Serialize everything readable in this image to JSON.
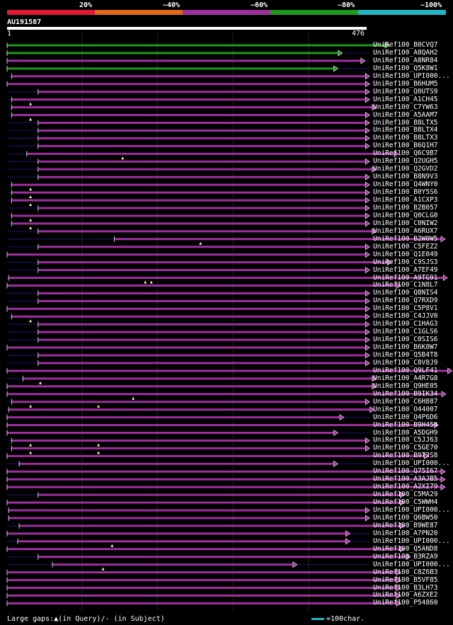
{
  "colors": {
    "bins": [
      "#e41a32",
      "#e06c1a",
      "#9d309d",
      "#1f9a1f",
      "#22b6c4"
    ],
    "red": "#e41a32",
    "orange": "#e06c1a",
    "purple": "#9d309d",
    "green": "#1f9a1f",
    "cyan": "#22b6c4"
  },
  "legend": {
    "p20": "20%",
    "p40": "~40%",
    "p60": "~60%",
    "p80": "~80%",
    "p100": "~100%"
  },
  "query": {
    "name": "AU191587",
    "start": "1",
    "end": "476",
    "length": 476
  },
  "footer": {
    "gaps": "Large gaps:▲(in Query)/- (in Subject)",
    "scale": "=100char."
  },
  "hits": [
    {
      "name": "UniRef100_B0CVQ7",
      "s": 1,
      "e": 507,
      "c": "green",
      "m": []
    },
    {
      "name": "UniRef100_A8QAH2",
      "s": 1,
      "e": 445,
      "c": "green",
      "m": []
    },
    {
      "name": "UniRef100_A8NR84",
      "s": 1,
      "e": 475,
      "c": "purple",
      "m": []
    },
    {
      "name": "UniRef100_Q5K8W1",
      "s": 1,
      "e": 439,
      "c": "green",
      "m": []
    },
    {
      "name": "UniRef100_UPI000...",
      "s": 7,
      "e": 481,
      "c": "purple",
      "m": []
    },
    {
      "name": "UniRef100_B6HUM5",
      "s": 1,
      "e": 481,
      "c": "purple",
      "m": []
    },
    {
      "name": "UniRef100_Q0UTS9",
      "s": 42,
      "e": 481,
      "c": "purple",
      "m": []
    },
    {
      "name": "UniRef100_A1CH45",
      "s": 7,
      "e": 481,
      "c": "purple",
      "m": [
        32
      ]
    },
    {
      "name": "UniRef100_C7YW63",
      "s": 7,
      "e": 490,
      "c": "purple",
      "m": []
    },
    {
      "name": "UniRef100_A5AAM7",
      "s": 7,
      "e": 481,
      "c": "purple",
      "m": [
        32
      ]
    },
    {
      "name": "UniRef100_B8LTX5",
      "s": 42,
      "e": 481,
      "c": "purple",
      "m": []
    },
    {
      "name": "UniRef100_B8LTX4",
      "s": 42,
      "e": 481,
      "c": "purple",
      "m": []
    },
    {
      "name": "UniRef100_B8LTX3",
      "s": 42,
      "e": 481,
      "c": "purple",
      "m": []
    },
    {
      "name": "UniRef100_B6Q1H7",
      "s": 42,
      "e": 481,
      "c": "purple",
      "m": []
    },
    {
      "name": "UniRef100_Q6C9B7",
      "s": 27,
      "e": 519,
      "c": "purple",
      "m": [
        154
      ]
    },
    {
      "name": "UniRef100_Q2UGH5",
      "s": 42,
      "e": 481,
      "c": "purple",
      "m": []
    },
    {
      "name": "UniRef100_Q2GVD2",
      "s": 42,
      "e": 490,
      "c": "purple",
      "m": []
    },
    {
      "name": "UniRef100_B8N9V3",
      "s": 42,
      "e": 481,
      "c": "purple",
      "m": []
    },
    {
      "name": "UniRef100_Q4WNY0",
      "s": 7,
      "e": 481,
      "c": "purple",
      "m": [
        32
      ]
    },
    {
      "name": "UniRef100_B0Y5S6",
      "s": 7,
      "e": 481,
      "c": "purple",
      "m": [
        32
      ]
    },
    {
      "name": "UniRef100_A1CXP3",
      "s": 7,
      "e": 481,
      "c": "purple",
      "m": [
        32
      ]
    },
    {
      "name": "UniRef100_B2B057",
      "s": 42,
      "e": 481,
      "c": "purple",
      "m": []
    },
    {
      "name": "UniRef100_Q0CLG0",
      "s": 7,
      "e": 481,
      "c": "purple",
      "m": [
        32
      ]
    },
    {
      "name": "UniRef100_C0NIW2",
      "s": 7,
      "e": 481,
      "c": "purple",
      "m": [
        32
      ]
    },
    {
      "name": "UniRef100_A6RUX7",
      "s": 42,
      "e": 490,
      "c": "purple",
      "m": []
    },
    {
      "name": "UniRef100_B2W0W5",
      "s": 143,
      "e": 581,
      "c": "purple",
      "m": [
        257
      ]
    },
    {
      "name": "UniRef100_C5FEZ2",
      "s": 42,
      "e": 481,
      "c": "purple",
      "m": []
    },
    {
      "name": "UniRef100_Q1E049",
      "s": 1,
      "e": 481,
      "c": "purple",
      "m": []
    },
    {
      "name": "UniRef100_C9SJS3",
      "s": 42,
      "e": 510,
      "c": "purple",
      "m": []
    },
    {
      "name": "UniRef100_A7EF49",
      "s": 42,
      "e": 481,
      "c": "purple",
      "m": []
    },
    {
      "name": "UniRef100_A9TG91",
      "s": 3,
      "e": 584,
      "c": "purple",
      "m": [
        184,
        192
      ]
    },
    {
      "name": "UniRef100_C1N8L7",
      "s": 1,
      "e": 522,
      "c": "purple",
      "m": []
    },
    {
      "name": "UniRef100_Q8NIS4",
      "s": 42,
      "e": 481,
      "c": "purple",
      "m": []
    },
    {
      "name": "UniRef100_Q7RXD9",
      "s": 42,
      "e": 481,
      "c": "purple",
      "m": []
    },
    {
      "name": "UniRef100_C5P8V1",
      "s": 1,
      "e": 481,
      "c": "purple",
      "m": []
    },
    {
      "name": "UniRef100_C4JJV0",
      "s": 7,
      "e": 481,
      "c": "purple",
      "m": [
        32
      ]
    },
    {
      "name": "UniRef100_C1HAG3",
      "s": 42,
      "e": 481,
      "c": "purple",
      "m": []
    },
    {
      "name": "UniRef100_C1GLS6",
      "s": 42,
      "e": 481,
      "c": "purple",
      "m": []
    },
    {
      "name": "UniRef100_C0SIS6",
      "s": 42,
      "e": 481,
      "c": "purple",
      "m": []
    },
    {
      "name": "UniRef100_B6K0W7",
      "s": 1,
      "e": 481,
      "c": "purple",
      "m": []
    },
    {
      "name": "UniRef100_Q5B4T8",
      "s": 42,
      "e": 481,
      "c": "purple",
      "m": []
    },
    {
      "name": "UniRef100_C8V8J9",
      "s": 42,
      "e": 481,
      "c": "purple",
      "m": []
    },
    {
      "name": "UniRef100_Q9LF41",
      "s": 1,
      "e": 590,
      "c": "purple",
      "m": []
    },
    {
      "name": "UniRef100_A4R7G8",
      "s": 22,
      "e": 490,
      "c": "purple",
      "m": [
        45
      ]
    },
    {
      "name": "UniRef100_Q9HE05",
      "s": 1,
      "e": 490,
      "c": "purple",
      "m": []
    },
    {
      "name": "UniRef100_B9IK34",
      "s": 1,
      "e": 582,
      "c": "purple",
      "m": [
        168
      ]
    },
    {
      "name": "UniRef100_C6H887",
      "s": 7,
      "e": 481,
      "c": "purple",
      "m": [
        32,
        122
      ]
    },
    {
      "name": "UniRef100_O44007",
      "s": 3,
      "e": 487,
      "c": "purple",
      "m": []
    },
    {
      "name": "UniRef100_Q4P6D6",
      "s": 1,
      "e": 447,
      "c": "purple",
      "m": []
    },
    {
      "name": "UniRef100_B9H454",
      "s": 1,
      "e": 572,
      "c": "purple",
      "m": []
    },
    {
      "name": "UniRef100_A5DGH9",
      "s": 1,
      "e": 439,
      "c": "purple",
      "m": []
    },
    {
      "name": "UniRef100_C5JJ63",
      "s": 7,
      "e": 481,
      "c": "purple",
      "m": [
        32,
        122
      ]
    },
    {
      "name": "UniRef100_C5GE70",
      "s": 7,
      "e": 481,
      "c": "purple",
      "m": [
        32,
        122
      ]
    },
    {
      "name": "UniRef100_B9T3S8",
      "s": 1,
      "e": 559,
      "c": "purple",
      "m": []
    },
    {
      "name": "UniRef100_UPI000...",
      "s": 17,
      "e": 439,
      "c": "purple",
      "m": []
    },
    {
      "name": "UniRef100_Q75I67",
      "s": 1,
      "e": 581,
      "c": "purple",
      "m": []
    },
    {
      "name": "UniRef100_A3AJB5",
      "s": 1,
      "e": 581,
      "c": "purple",
      "m": []
    },
    {
      "name": "UniRef100_A2XI79",
      "s": 1,
      "e": 581,
      "c": "purple",
      "m": []
    },
    {
      "name": "UniRef100_C5MA29",
      "s": 42,
      "e": 527,
      "c": "purple",
      "m": []
    },
    {
      "name": "UniRef100_C5WWH4",
      "s": 1,
      "e": 527,
      "c": "purple",
      "m": []
    },
    {
      "name": "UniRef100_UPI000...",
      "s": 3,
      "e": 481,
      "c": "purple",
      "m": []
    },
    {
      "name": "UniRef100_Q6BW50",
      "s": 3,
      "e": 481,
      "c": "purple",
      "m": []
    },
    {
      "name": "UniRef100_B9WE87",
      "s": 17,
      "e": 527,
      "c": "purple",
      "m": []
    },
    {
      "name": "UniRef100_A7PN20",
      "s": 1,
      "e": 455,
      "c": "purple",
      "m": []
    },
    {
      "name": "UniRef100_UPI000...",
      "s": 15,
      "e": 455,
      "c": "purple",
      "m": [
        140
      ]
    },
    {
      "name": "UniRef100_Q5AND8",
      "s": 1,
      "e": 527,
      "c": "purple",
      "m": []
    },
    {
      "name": "UniRef100_B3RZA9",
      "s": 42,
      "e": 535,
      "c": "purple",
      "m": []
    },
    {
      "name": "UniRef100_UPI000...",
      "s": 61,
      "e": 385,
      "c": "purple",
      "m": [
        128
      ]
    },
    {
      "name": "UniRef100_C8Z6B3",
      "s": 1,
      "e": 522,
      "c": "purple",
      "m": []
    },
    {
      "name": "UniRef100_B5VF85",
      "s": 1,
      "e": 522,
      "c": "purple",
      "m": []
    },
    {
      "name": "UniRef100_B3LH73",
      "s": 1,
      "e": 522,
      "c": "purple",
      "m": []
    },
    {
      "name": "UniRef100_A6ZXE2",
      "s": 1,
      "e": 522,
      "c": "purple",
      "m": []
    },
    {
      "name": "UniRef100_P54860",
      "s": 1,
      "e": 522,
      "c": "purple",
      "m": []
    }
  ]
}
